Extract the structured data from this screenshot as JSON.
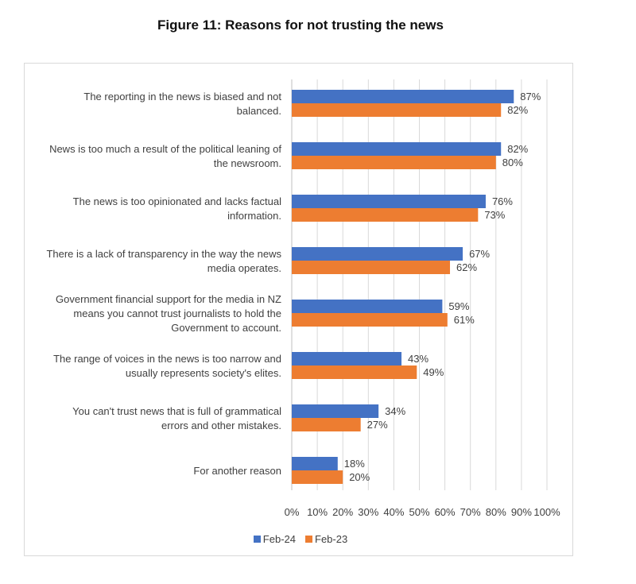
{
  "title": "Figure 11: Reasons for not trusting the news",
  "chart_data": {
    "type": "bar",
    "orientation": "horizontal",
    "title": "Figure 11: Reasons for not trusting the news",
    "xlabel": "",
    "ylabel": "",
    "xlim": [
      0,
      100
    ],
    "xticks": [
      "0%",
      "10%",
      "20%",
      "30%",
      "40%",
      "50%",
      "60%",
      "70%",
      "80%",
      "90%",
      "100%"
    ],
    "grid": true,
    "legend_position": "bottom",
    "value_suffix": "%",
    "categories": [
      [
        "The reporting in the news is biased and not",
        "balanced."
      ],
      [
        "News is too much a result of the political leaning of",
        "the newsroom."
      ],
      [
        "The news is too opinionated and lacks factual",
        "information."
      ],
      [
        "There is a lack of transparency in the way the news",
        "media operates."
      ],
      [
        "Government financial support for the media in NZ",
        "means you cannot trust journalists to hold the",
        "Government to account."
      ],
      [
        "The range of voices in the news is too narrow and",
        "usually represents society's elites."
      ],
      [
        "You can't trust news that is full of grammatical",
        "errors and other mistakes."
      ],
      [
        "For another reason"
      ]
    ],
    "series": [
      {
        "name": "Feb-24",
        "color": "#4472c4",
        "values": [
          87,
          82,
          76,
          67,
          59,
          43,
          34,
          18
        ]
      },
      {
        "name": "Feb-23",
        "color": "#ed7d31",
        "values": [
          82,
          80,
          73,
          62,
          61,
          49,
          27,
          20
        ]
      }
    ]
  }
}
